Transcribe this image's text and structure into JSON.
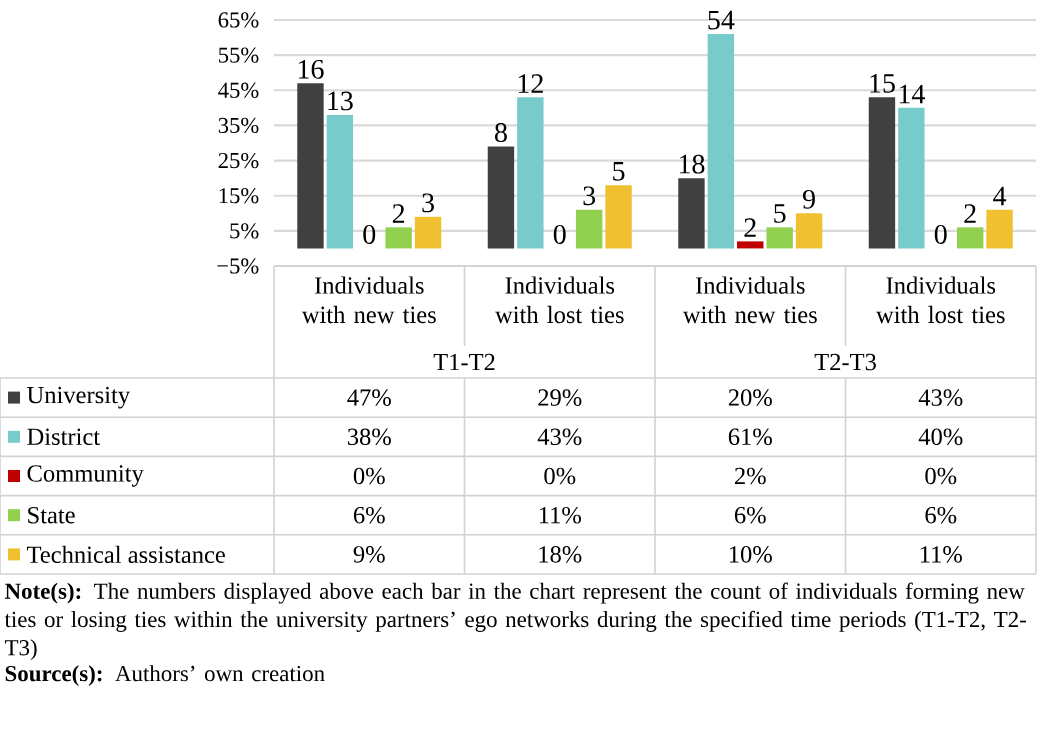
{
  "chart_data": {
    "type": "bar",
    "categories": [
      "Individuals with new ties",
      "Individuals with lost ties",
      "Individuals with new ties",
      "Individuals with lost ties"
    ],
    "series": [
      {
        "name": "University",
        "color": "#404040",
        "values": [
          47,
          29,
          20,
          43
        ],
        "value_labels": [
          "47%",
          "29%",
          "20%",
          "43%"
        ]
      },
      {
        "name": "District",
        "color": "#78cbcb",
        "values": [
          38,
          43,
          61,
          40
        ],
        "value_labels": [
          "38%",
          "43%",
          "61%",
          "40%"
        ]
      },
      {
        "name": "Community",
        "color": "#c00000",
        "values": [
          0,
          0,
          2,
          0
        ],
        "value_labels": [
          "0%",
          "0%",
          "2%",
          "0%"
        ]
      },
      {
        "name": "State",
        "color": "#92d050",
        "values": [
          6,
          11,
          6,
          6
        ],
        "value_labels": [
          "6%",
          "11%",
          "6%",
          "6%"
        ]
      },
      {
        "name": "Technical assistance",
        "color": "#f0c030",
        "values": [
          9,
          18,
          10,
          11
        ],
        "value_labels": [
          "9%",
          "18%",
          "10%",
          "11%"
        ]
      }
    ],
    "ylim": [
      -5,
      65
    ],
    "yticks": [
      {
        "value": -5,
        "label": "−5%"
      },
      {
        "value": 5,
        "label": "5%"
      },
      {
        "value": 15,
        "label": "15%"
      },
      {
        "value": 25,
        "label": "25%"
      },
      {
        "value": 35,
        "label": "35%"
      },
      {
        "value": 45,
        "label": "45%"
      },
      {
        "value": 55,
        "label": "55%"
      },
      {
        "value": 65,
        "label": "65%"
      }
    ],
    "grid": "y",
    "legend": "bottom left",
    "annotations": [
      "T1-T2",
      "T2-T3",
      "**Note(s):** The numbers displayed above each bar in the chart represent the count of individuals forming new ties or losing ties within the university partners’ ego networks during the specified time periods (T1-T2, T2-T3)",
      "**Source(s):** Authors’ own creation",
      "16",
      "8",
      "18",
      "15",
      "13",
      "12",
      "54",
      "14",
      "0",
      "0",
      "2",
      "0",
      "2",
      "3",
      "5",
      "2",
      "3",
      "5",
      "9",
      "4"
    ]
  }
}
